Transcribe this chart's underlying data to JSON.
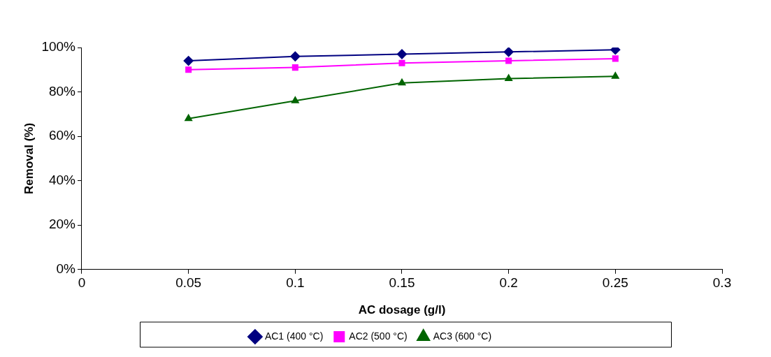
{
  "chart_data": {
    "type": "line",
    "xlabel": "AC dosage (g/l)",
    "ylabel": "Removal (%)",
    "x": [
      0.05,
      0.1,
      0.15,
      0.2,
      0.25
    ],
    "series": [
      {
        "name": "AC1 (400 °C)",
        "color": "#000080",
        "marker": "diamond",
        "values": [
          94,
          96,
          97,
          98,
          99
        ]
      },
      {
        "name": "AC2 (500 °C)",
        "color": "#ff00ff",
        "marker": "square",
        "values": [
          90,
          91,
          93,
          94,
          95
        ]
      },
      {
        "name": "AC3 (600 °C)",
        "color": "#006400",
        "marker": "triangle",
        "values": [
          68,
          76,
          84,
          86,
          87
        ]
      }
    ],
    "xlim": [
      0,
      0.3
    ],
    "xticks": [
      0,
      0.05,
      0.1,
      0.15,
      0.2,
      0.25,
      0.3
    ],
    "ylim": [
      0,
      100
    ],
    "yticks": [
      {
        "value": 0,
        "label": "0%"
      },
      {
        "value": 20,
        "label": "20%"
      },
      {
        "value": 40,
        "label": "40%"
      },
      {
        "value": 60,
        "label": "60%"
      },
      {
        "value": 80,
        "label": "80%"
      },
      {
        "value": 100,
        "label": "100%"
      }
    ],
    "grid": false,
    "legend": "bottom",
    "line_style": "solid"
  }
}
